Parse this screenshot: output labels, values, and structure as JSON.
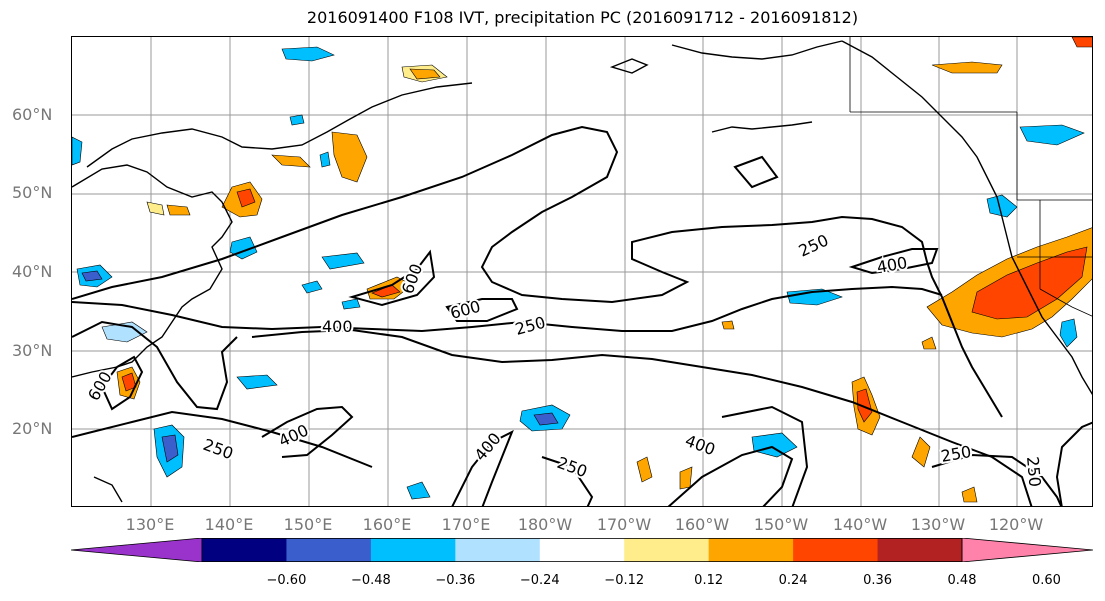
{
  "title": "2016091400 F108 IVT, precipitation PC (2016091712 - 2016091812)",
  "lat_labels": [
    "60°N",
    "50°N",
    "40°N",
    "30°N",
    "20°N"
  ],
  "lon_labels": [
    "130°E",
    "140°E",
    "150°E",
    "160°E",
    "170°E",
    "180°W",
    "170°W",
    "160°W",
    "150°W",
    "140°W",
    "130°W",
    "120°W"
  ],
  "contour_labels": [
    "250",
    "400",
    "600",
    "600",
    "400",
    "250",
    "600",
    "250",
    "400",
    "250",
    "400",
    "400",
    "250",
    "250",
    "250",
    "400"
  ],
  "colorbar": {
    "colors": [
      "#9933cc",
      "#000080",
      "#3a5fcd",
      "#00bfff",
      "#b0e2ff",
      "#ffffff",
      "#ffec8b",
      "#ffa500",
      "#ff4500",
      "#b22222",
      "#ff82ab"
    ],
    "ticks": [
      "−0.60",
      "−0.48",
      "−0.36",
      "−0.24",
      "−0.12",
      "0.12",
      "0.24",
      "0.36",
      "0.48",
      "0.60"
    ]
  }
}
